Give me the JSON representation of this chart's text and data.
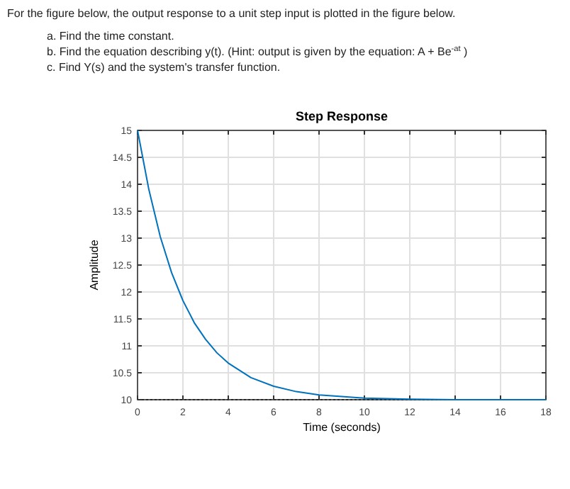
{
  "chart_data": {
    "type": "line",
    "title": "Step Response",
    "xlabel": "Time (seconds)",
    "ylabel": "Amplitude",
    "annotations": [
      "For the figure below, the output response to a unit step input is plotted in the figure below.",
      "a. Find the time constant.",
      "b. Find the equation describing y(t). (Hint: output is given by the equation: A + Be$^{-at}$ )",
      "c. Find Y(s) and the system's transfer function."
    ],
    "x": [
      0,
      0.5,
      1,
      1.5,
      2,
      2.5,
      3,
      3.5,
      4,
      5,
      6,
      7,
      8,
      9,
      10,
      11,
      12,
      14,
      16,
      18
    ],
    "series": [
      {
        "color": "#0072bd",
        "values": [
          15,
          13.9,
          13.03,
          12.36,
          11.84,
          11.43,
          11.12,
          10.87,
          10.68,
          10.41,
          10.25,
          10.15,
          10.09,
          10.06,
          10.03,
          10.02,
          10.01,
          10,
          10,
          10
        ]
      }
    ],
    "xlim": [
      0,
      18
    ],
    "xticks": [
      0,
      2,
      4,
      6,
      8,
      10,
      12,
      14,
      16,
      18
    ],
    "ylim": [
      10,
      15
    ],
    "yticks": [
      10,
      10.5,
      11,
      11.5,
      12,
      12.5,
      13,
      13.5,
      14,
      14.5,
      15
    ],
    "ref_lines": [
      {
        "axis": "y",
        "value": 10,
        "color": "#000000",
        "line_style": "dotted"
      }
    ],
    "grid": true,
    "marker": "none",
    "line_style": "solid"
  }
}
